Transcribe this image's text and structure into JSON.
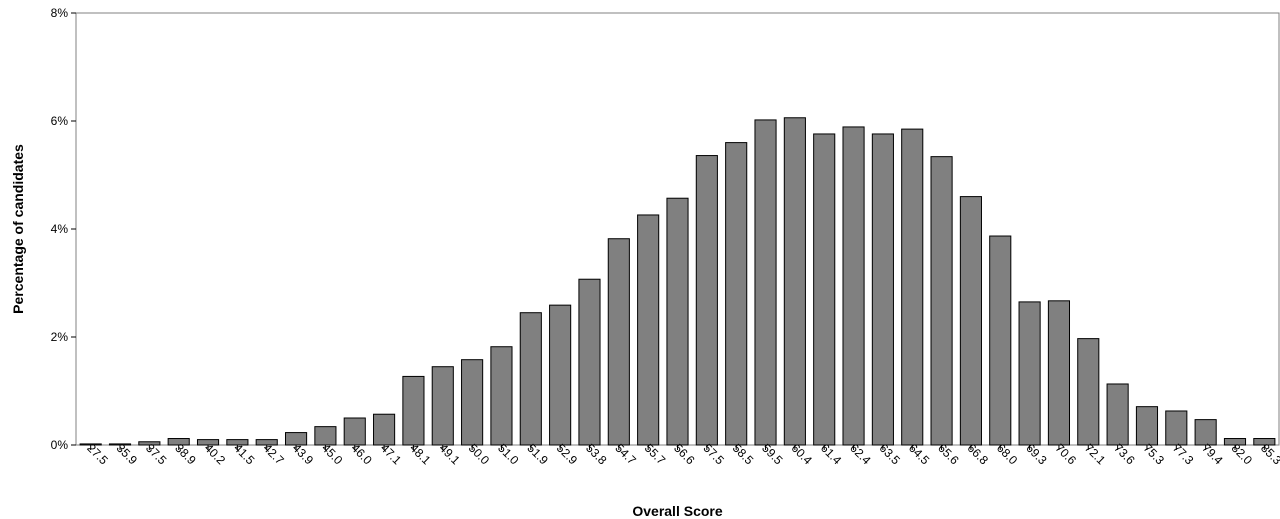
{
  "chart_data": {
    "type": "bar",
    "xlabel": "Overall Score",
    "ylabel": "Percentage of candidates",
    "ylim": [
      0,
      8
    ],
    "yticks": [
      "0%",
      "2%",
      "4%",
      "6%",
      "8%"
    ],
    "ytick_values": [
      0,
      2,
      4,
      6,
      8
    ],
    "categories": [
      "27.5",
      "35.9",
      "37.5",
      "38.9",
      "40.2",
      "41.5",
      "42.7",
      "43.9",
      "45.0",
      "46.0",
      "47.1",
      "48.1",
      "49.1",
      "50.0",
      "51.0",
      "51.9",
      "52.9",
      "53.8",
      "54.7",
      "55.7",
      "56.6",
      "57.5",
      "58.5",
      "59.5",
      "60.4",
      "61.4",
      "62.4",
      "63.5",
      "64.5",
      "65.6",
      "66.8",
      "68.0",
      "69.3",
      "70.6",
      "72.1",
      "73.6",
      "75.3",
      "77.3",
      "79.4",
      "82.0",
      "85.3"
    ],
    "values": [
      0.02,
      0.02,
      0.06,
      0.12,
      0.1,
      0.1,
      0.1,
      0.23,
      0.34,
      0.5,
      0.57,
      1.27,
      1.45,
      1.58,
      1.82,
      2.45,
      2.59,
      3.07,
      3.82,
      4.26,
      4.57,
      5.36,
      5.6,
      6.02,
      6.06,
      5.76,
      5.89,
      5.76,
      5.85,
      5.34,
      4.6,
      3.87,
      2.65,
      2.67,
      1.97,
      1.13,
      0.71,
      0.63,
      0.47,
      0.12,
      0.12
    ],
    "grid": false,
    "legend": "none",
    "bar_color": "#808080",
    "bar_edge_color": "#000000"
  }
}
